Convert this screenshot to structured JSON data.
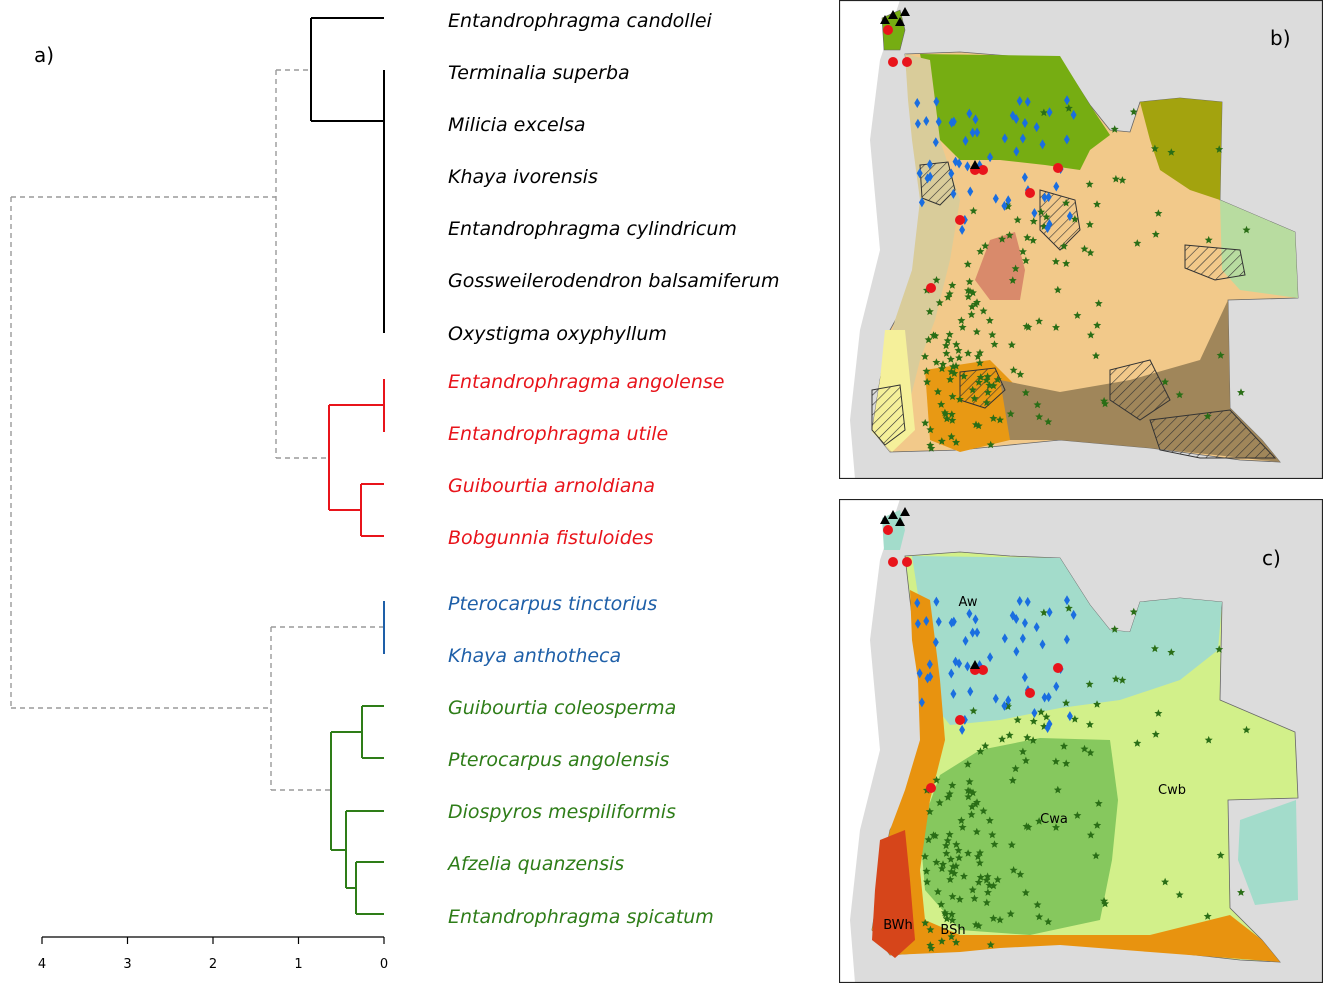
{
  "panels": {
    "a": "a)",
    "b": "b)",
    "c": "c)"
  },
  "colors": {
    "cluster_black": "#000000",
    "cluster_red": "#e8141b",
    "cluster_blue": "#1e5fa8",
    "cluster_green": "#2e7d18",
    "dashed": "#9a9a9a"
  },
  "dendrogram": {
    "species": [
      {
        "label": "Entandrophragma candollei",
        "cluster": "black"
      },
      {
        "label": "Terminalia superba",
        "cluster": "black"
      },
      {
        "label": "Milicia excelsa",
        "cluster": "black"
      },
      {
        "label": "Khaya ivorensis",
        "cluster": "black"
      },
      {
        "label": "Entandrophragma cylindricum",
        "cluster": "black"
      },
      {
        "label": "Gossweilerodendron balsamiferum",
        "cluster": "black"
      },
      {
        "label": "Oxystigma oxyphyllum",
        "cluster": "black"
      },
      {
        "label": "Entandrophragma angolense",
        "cluster": "red"
      },
      {
        "label": "Entandrophragma utile",
        "cluster": "red"
      },
      {
        "label": "Guibourtia arnoldiana",
        "cluster": "red"
      },
      {
        "label": "Bobgunnia fistuloides",
        "cluster": "red"
      },
      {
        "label": "Pterocarpus tinctorius",
        "cluster": "blue"
      },
      {
        "label": "Khaya anthotheca",
        "cluster": "blue"
      },
      {
        "label": "Guibourtia coleosperma",
        "cluster": "green"
      },
      {
        "label": "Pterocarpus angolensis",
        "cluster": "green"
      },
      {
        "label": "Diospyros mespiliformis",
        "cluster": "green"
      },
      {
        "label": "Afzelia quanzensis",
        "cluster": "green"
      },
      {
        "label": "Entandrophragma spicatum",
        "cluster": "green"
      }
    ],
    "axis": {
      "ticks": [
        "4",
        "3",
        "2",
        "1",
        "0"
      ],
      "range": [
        4,
        0
      ]
    }
  },
  "map_c": {
    "climate_zones": [
      {
        "code": "Aw",
        "color": "#a3dccb"
      },
      {
        "code": "Cwb",
        "color": "#d2f08a"
      },
      {
        "code": "Cwa",
        "color": "#86c85e"
      },
      {
        "code": "BSh",
        "color": "#e8930f"
      },
      {
        "code": "BWh",
        "color": "#d6451a"
      }
    ]
  },
  "map_b": {
    "vegetation_colors": [
      "#76ad12",
      "#a3a30e",
      "#f2c98a",
      "#d9cc9a",
      "#d98a6b",
      "#e89914",
      "#a0865a",
      "#f5f09a",
      "#b8dca0"
    ]
  },
  "markers": {
    "red_circle": "#e8141b",
    "blue_diamond": "#1a6ee0",
    "green_star": "#2a6e16",
    "black_triangle": "#000000"
  }
}
